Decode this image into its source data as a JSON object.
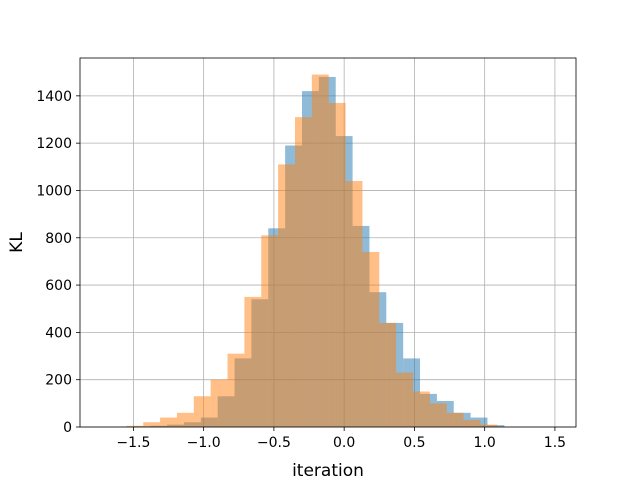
{
  "chart_data": {
    "type": "histogram",
    "title": "",
    "xlabel": "iteration",
    "ylabel": "KL",
    "xlim": [
      -1.88,
      1.65
    ],
    "ylim": [
      0,
      1560
    ],
    "xticks": [
      -1.5,
      -1.0,
      -0.5,
      0.0,
      0.5,
      1.0,
      1.5
    ],
    "xtick_labels": [
      "−1.5",
      "−1.0",
      "−0.5",
      "0.0",
      "0.5",
      "1.0",
      "1.5"
    ],
    "yticks": [
      0,
      200,
      400,
      600,
      800,
      1000,
      1200,
      1400
    ],
    "ytick_labels": [
      "0",
      "200",
      "400",
      "600",
      "800",
      "1000",
      "1200",
      "1400"
    ],
    "grid": true,
    "series": [
      {
        "color": "#1f77b4",
        "opacity": 0.5,
        "bin_edges": [
          -1.62,
          -1.5,
          -1.38,
          -1.26,
          -1.14,
          -1.02,
          -0.9,
          -0.78,
          -0.66,
          -0.54,
          -0.42,
          -0.3,
          -0.18,
          -0.06,
          0.06,
          0.18,
          0.3,
          0.42,
          0.54,
          0.66,
          0.78,
          0.9,
          1.02,
          1.14
        ],
        "counts": [
          2,
          3,
          5,
          10,
          20,
          40,
          130,
          290,
          540,
          840,
          1190,
          1420,
          1480,
          1230,
          850,
          570,
          440,
          290,
          140,
          110,
          60,
          40,
          8
        ]
      },
      {
        "color": "#ff7f0e",
        "opacity": 0.5,
        "bin_edges": [
          -1.55,
          -1.43,
          -1.31,
          -1.19,
          -1.07,
          -0.95,
          -0.83,
          -0.71,
          -0.59,
          -0.47,
          -0.35,
          -0.23,
          -0.11,
          0.01,
          0.13,
          0.25,
          0.37,
          0.49,
          0.61,
          0.73,
          0.85,
          0.97,
          1.09,
          1.21
        ],
        "counts": [
          5,
          20,
          40,
          60,
          130,
          200,
          310,
          550,
          810,
          1110,
          1310,
          1490,
          1370,
          1040,
          740,
          440,
          230,
          150,
          100,
          60,
          30,
          10,
          2
        ]
      }
    ]
  }
}
